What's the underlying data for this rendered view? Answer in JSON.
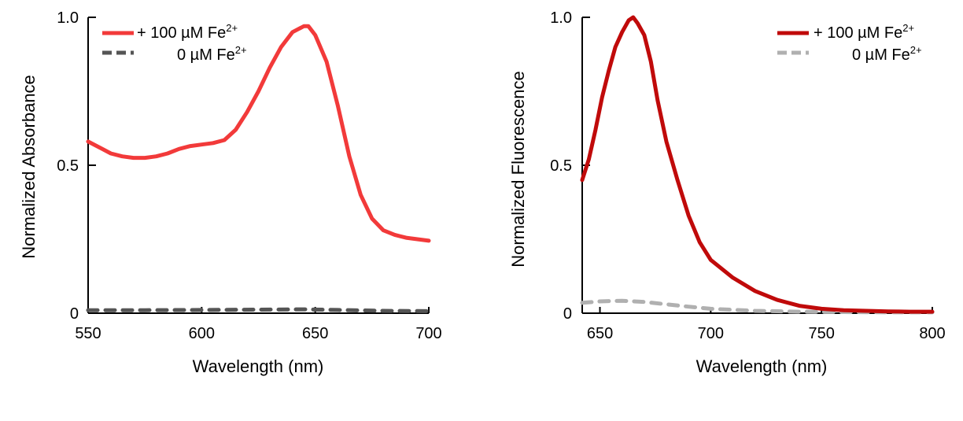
{
  "chart_data": [
    {
      "type": "line",
      "title": "",
      "xlabel": "Wavelength (nm)",
      "ylabel": "Normalized Absorbance",
      "xlim": [
        550,
        700
      ],
      "ylim": [
        0,
        1.0
      ],
      "x_ticks": [
        550,
        600,
        650,
        700
      ],
      "x_tick_labels": [
        "550",
        "600",
        "650",
        "700"
      ],
      "y_ticks": [
        0,
        0.5,
        1.0
      ],
      "y_tick_labels": [
        "0",
        "0.5",
        "1.0"
      ],
      "legend_position": "top-left",
      "series": [
        {
          "name": "+ 100 µM Fe2+",
          "legend_label": "+ 100 µM Fe",
          "legend_sup": "2+",
          "color": "#f23a3a",
          "dash": "solid",
          "x": [
            550,
            555,
            560,
            565,
            570,
            575,
            580,
            585,
            590,
            595,
            600,
            605,
            610,
            615,
            620,
            625,
            630,
            635,
            640,
            645,
            647,
            650,
            655,
            660,
            665,
            670,
            675,
            680,
            685,
            690,
            695,
            700
          ],
          "y": [
            0.58,
            0.56,
            0.54,
            0.53,
            0.525,
            0.525,
            0.53,
            0.54,
            0.555,
            0.565,
            0.57,
            0.575,
            0.585,
            0.62,
            0.68,
            0.75,
            0.83,
            0.9,
            0.95,
            0.97,
            0.97,
            0.94,
            0.85,
            0.7,
            0.53,
            0.4,
            0.32,
            0.28,
            0.265,
            0.255,
            0.25,
            0.245
          ]
        },
        {
          "name": "0 µM Fe2+",
          "legend_label": "0 µM Fe",
          "legend_sup": "2+",
          "color": "#555555",
          "dash": "dashed",
          "x": [
            550,
            575,
            600,
            625,
            645,
            660,
            680,
            700
          ],
          "y": [
            0.01,
            0.01,
            0.011,
            0.012,
            0.013,
            0.011,
            0.008,
            0.007
          ]
        }
      ]
    },
    {
      "type": "line",
      "title": "",
      "xlabel": "Wavelength (nm)",
      "ylabel": "Normalized Fluorescence",
      "xlim": [
        642,
        800
      ],
      "ylim": [
        0,
        1.0
      ],
      "x_ticks": [
        650,
        700,
        750,
        800
      ],
      "x_tick_labels": [
        "650",
        "700",
        "750",
        "800"
      ],
      "y_ticks": [
        0,
        0.5,
        1.0
      ],
      "y_tick_labels": [
        "0",
        "0.5",
        "1.0"
      ],
      "legend_position": "top-right",
      "series": [
        {
          "name": "+ 100 µM Fe2+",
          "legend_label": "+ 100 µM Fe",
          "legend_sup": "2+",
          "color": "#c00a0a",
          "dash": "solid",
          "x": [
            642,
            645,
            648,
            651,
            654,
            657,
            660,
            663,
            665,
            667,
            670,
            673,
            676,
            680,
            685,
            690,
            695,
            700,
            710,
            720,
            730,
            740,
            750,
            760,
            770,
            780,
            790,
            800
          ],
          "y": [
            0.45,
            0.52,
            0.62,
            0.73,
            0.82,
            0.9,
            0.95,
            0.99,
            1.0,
            0.98,
            0.94,
            0.85,
            0.72,
            0.58,
            0.45,
            0.33,
            0.24,
            0.18,
            0.12,
            0.075,
            0.045,
            0.025,
            0.015,
            0.01,
            0.008,
            0.006,
            0.005,
            0.005
          ]
        },
        {
          "name": "0 µM Fe2+",
          "legend_label": "0 µM Fe",
          "legend_sup": "2+",
          "color": "#b0b0b0",
          "dash": "dashed",
          "x": [
            642,
            650,
            660,
            670,
            680,
            690,
            700,
            720,
            740,
            760,
            780,
            800
          ],
          "y": [
            0.035,
            0.04,
            0.042,
            0.038,
            0.03,
            0.022,
            0.015,
            0.008,
            0.005,
            0.004,
            0.003,
            0.003
          ]
        }
      ]
    }
  ]
}
